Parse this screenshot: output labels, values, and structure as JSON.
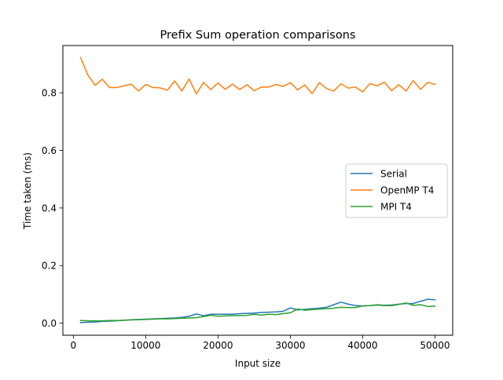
{
  "chart_data": {
    "type": "line",
    "title": "Prefix Sum operation comparisons",
    "xlabel": "Input size",
    "ylabel": "Time taken (ms)",
    "xlim": [
      -1450,
      52450
    ],
    "ylim": [
      -0.042,
      0.964
    ],
    "xticks": [
      0,
      10000,
      20000,
      30000,
      40000,
      50000
    ],
    "xtick_labels": [
      "0",
      "10000",
      "20000",
      "30000",
      "40000",
      "50000"
    ],
    "yticks": [
      0.0,
      0.2,
      0.4,
      0.6,
      0.8
    ],
    "ytick_labels": [
      "0.0",
      "0.2",
      "0.4",
      "0.6",
      "0.8"
    ],
    "grid": false,
    "legend_position": "center-right",
    "x": [
      1000,
      2000,
      3000,
      4000,
      5000,
      6000,
      7000,
      8000,
      9000,
      10000,
      11000,
      12000,
      13000,
      14000,
      15000,
      16000,
      17000,
      18000,
      19000,
      20000,
      21000,
      22000,
      23000,
      24000,
      25000,
      26000,
      27000,
      28000,
      29000,
      30000,
      31000,
      32000,
      33000,
      34000,
      35000,
      36000,
      37000,
      38000,
      39000,
      40000,
      41000,
      42000,
      43000,
      44000,
      45000,
      46000,
      47000,
      48000,
      49000,
      50000
    ],
    "series": [
      {
        "name": "Serial",
        "color": "#1f77b4",
        "values": [
          0.002,
          0.003,
          0.004,
          0.006,
          0.007,
          0.008,
          0.01,
          0.012,
          0.013,
          0.014,
          0.015,
          0.016,
          0.017,
          0.018,
          0.02,
          0.024,
          0.032,
          0.026,
          0.031,
          0.031,
          0.031,
          0.031,
          0.033,
          0.034,
          0.035,
          0.037,
          0.038,
          0.039,
          0.041,
          0.053,
          0.046,
          0.048,
          0.05,
          0.052,
          0.055,
          0.064,
          0.073,
          0.066,
          0.061,
          0.06,
          0.061,
          0.064,
          0.062,
          0.063,
          0.066,
          0.068,
          0.068,
          0.076,
          0.083,
          0.081
        ]
      },
      {
        "name": "OpenMP T4",
        "color": "#ff7f0e",
        "values": [
          0.922,
          0.862,
          0.826,
          0.847,
          0.818,
          0.818,
          0.824,
          0.83,
          0.806,
          0.829,
          0.818,
          0.817,
          0.809,
          0.841,
          0.806,
          0.848,
          0.796,
          0.836,
          0.811,
          0.834,
          0.812,
          0.83,
          0.811,
          0.828,
          0.807,
          0.82,
          0.82,
          0.829,
          0.822,
          0.835,
          0.81,
          0.827,
          0.797,
          0.835,
          0.815,
          0.806,
          0.831,
          0.816,
          0.82,
          0.803,
          0.832,
          0.824,
          0.837,
          0.807,
          0.828,
          0.806,
          0.842,
          0.812,
          0.836,
          0.829
        ]
      },
      {
        "name": "MPI T4",
        "color": "#2ca02c",
        "values": [
          0.009,
          0.008,
          0.008,
          0.008,
          0.009,
          0.009,
          0.01,
          0.011,
          0.012,
          0.013,
          0.014,
          0.015,
          0.015,
          0.016,
          0.017,
          0.018,
          0.019,
          0.023,
          0.027,
          0.024,
          0.025,
          0.026,
          0.026,
          0.027,
          0.031,
          0.028,
          0.031,
          0.03,
          0.033,
          0.036,
          0.049,
          0.045,
          0.047,
          0.049,
          0.05,
          0.052,
          0.055,
          0.054,
          0.054,
          0.06,
          0.061,
          0.063,
          0.061,
          0.061,
          0.065,
          0.07,
          0.062,
          0.064,
          0.058,
          0.059
        ]
      }
    ]
  }
}
